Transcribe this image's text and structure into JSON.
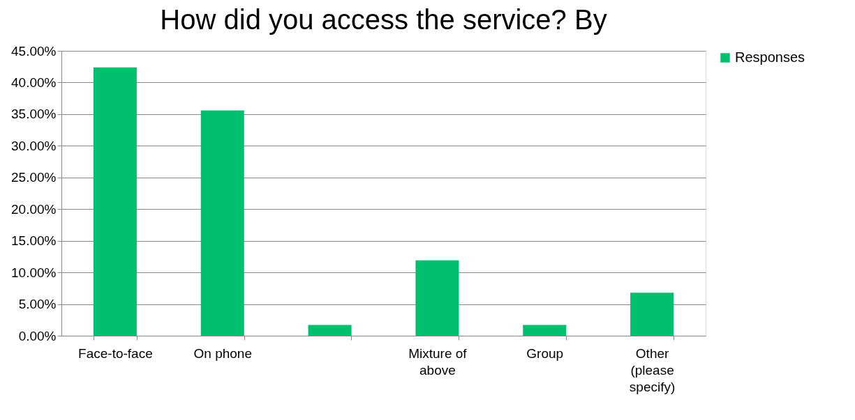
{
  "chart_data": {
    "type": "bar",
    "title": "How did you access the service? By",
    "categories": [
      "Face-to-face",
      "On phone",
      null,
      "Mixture of above",
      "Group",
      "Other (please specify)"
    ],
    "series": [
      {
        "name": "Responses",
        "color": "#00bf6f",
        "values": [
          42.4,
          35.6,
          1.7,
          11.9,
          1.7,
          6.8
        ]
      }
    ],
    "ylim": [
      0,
      45
    ],
    "yticks": [
      {
        "value": 0,
        "label": "0.00%"
      },
      {
        "value": 5,
        "label": "5.00%"
      },
      {
        "value": 10,
        "label": "10.00%"
      },
      {
        "value": 15,
        "label": "15.00%"
      },
      {
        "value": 20,
        "label": "20.00%"
      },
      {
        "value": 25,
        "label": "25.00%"
      },
      {
        "value": 30,
        "label": "30.00%"
      },
      {
        "value": 35,
        "label": "35.00%"
      },
      {
        "value": 40,
        "label": "40.00%"
      },
      {
        "value": 45,
        "label": "45.00%"
      }
    ],
    "grid": "y",
    "legend": "right"
  }
}
